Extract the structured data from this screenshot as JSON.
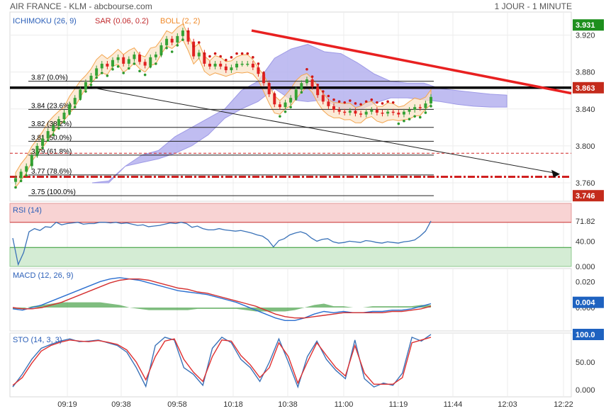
{
  "header": {
    "title": "AIR FRANCE - KLM - abcbourse.com",
    "period": "1 JOUR - 1 MINUTE"
  },
  "colors": {
    "up": "#35a235",
    "down": "#e02020",
    "sar_up": "#2f9a2f",
    "sar_down": "#d01818",
    "cloud": "#b5b2ee",
    "boll": "#f4a650",
    "rsi": "#3a72b8",
    "sto_k": "#3a72b8",
    "sto_d": "#e03030",
    "green_tag": "#1d8f1d",
    "red_tag": "#c42b1c",
    "blue_tag": "#1e62c0"
  },
  "chart_data": [
    {
      "type": "candlestick",
      "panel": "price",
      "indicator_labels": [
        "ICHIMOKU (26, 9)",
        "SAR (0.06, 0.2)",
        "BOLL (2, 2)"
      ],
      "y_ticks": [
        "3.920",
        "3.880",
        "3.840",
        "3.800",
        "3.760"
      ],
      "y_range": [
        3.74,
        3.945
      ],
      "x_ticks": [
        "09:19",
        "09:38",
        "09:58",
        "10:18",
        "10:38",
        "11:00",
        "11:19",
        "11:44",
        "12:03",
        "12:22"
      ],
      "price_tags": [
        {
          "value": "3.931",
          "price": 3.931,
          "color": "green"
        },
        {
          "value": "3.863",
          "price": 3.863,
          "color": "red"
        },
        {
          "value": "3.746",
          "price": 3.746,
          "color": "red"
        }
      ],
      "fibonacci": [
        {
          "label": "3.87  (0.0%)",
          "price": 3.87
        },
        {
          "label": "3.84  (23.6%)",
          "price": 3.8395
        },
        {
          "label": "3.82  (38.2%)",
          "price": 3.82
        },
        {
          "label": "3.81  (50.0%)",
          "price": 3.805
        },
        {
          "label": "3.79  (61.8%)",
          "price": 3.79
        },
        {
          "label": "3.77  (78.6%)",
          "price": 3.7685
        },
        {
          "label": "3.75  (100.0%)",
          "price": 3.746
        }
      ],
      "closes": [
        3.765,
        3.772,
        3.778,
        3.79,
        3.8,
        3.808,
        3.816,
        3.822,
        3.829,
        3.836,
        3.845,
        3.852,
        3.861,
        3.869,
        3.876,
        3.884,
        3.889,
        3.886,
        3.893,
        3.896,
        3.889,
        3.894,
        3.899,
        3.891,
        3.887,
        3.896,
        3.899,
        3.909,
        3.916,
        3.912,
        3.919,
        3.925,
        3.913,
        3.897,
        3.901,
        3.889,
        3.886,
        3.889,
        3.886,
        3.882,
        3.885,
        3.889,
        3.889,
        3.889,
        3.885,
        3.878,
        3.868,
        3.856,
        3.845,
        3.842,
        3.847,
        3.852,
        3.861,
        3.868,
        3.872,
        3.864,
        3.855,
        3.848,
        3.843,
        3.839,
        3.837,
        3.836,
        3.838,
        3.835,
        3.834,
        3.837,
        3.839,
        3.836,
        3.835,
        3.837,
        3.836,
        3.834,
        3.837,
        3.839,
        3.842,
        3.841,
        3.846,
        3.853
      ]
    },
    {
      "type": "line",
      "panel": "rsi",
      "label": "RSI (14)",
      "y_ticks": [
        "40.00",
        "0.000"
      ],
      "y_range": [
        0,
        100
      ],
      "overbought": 70,
      "oversold": 30,
      "current_tag": "71.82",
      "values": [
        45,
        3,
        22,
        55,
        60,
        57,
        63,
        62,
        70,
        66,
        68,
        69,
        70,
        67,
        68,
        68,
        70,
        70,
        69,
        70,
        68,
        69,
        67,
        65,
        66,
        63,
        64,
        65,
        67,
        69,
        68,
        70,
        68,
        62,
        64,
        60,
        58,
        58,
        60,
        58,
        57,
        56,
        57,
        55,
        53,
        50,
        48,
        42,
        31,
        41,
        44,
        50,
        53,
        55,
        52,
        45,
        40,
        43,
        44,
        39,
        37,
        38,
        40,
        39,
        38,
        41,
        40,
        38,
        37,
        39,
        38,
        37,
        39,
        40,
        42,
        48,
        56,
        72
      ]
    },
    {
      "type": "line",
      "panel": "macd",
      "label": "MACD (12, 26, 9)",
      "y_ticks": [
        "0.020",
        "0.000"
      ],
      "y_range": [
        -0.018,
        0.03
      ],
      "current_tag": "0.004",
      "series": [
        {
          "name": "MACD",
          "values": [
            -0.001,
            -0.002,
            0.0,
            0.002,
            0.005,
            0.008,
            0.011,
            0.014,
            0.017,
            0.02,
            0.022,
            0.023,
            0.022,
            0.021,
            0.019,
            0.017,
            0.015,
            0.013,
            0.012,
            0.011,
            0.01,
            0.008,
            0.006,
            0.004,
            0.001,
            -0.002,
            -0.005,
            -0.008,
            -0.01,
            -0.01,
            -0.008,
            -0.005,
            -0.003,
            -0.004,
            -0.003,
            -0.004,
            -0.004,
            -0.003,
            -0.003,
            -0.002,
            -0.002,
            -0.001,
            0.001,
            0.003
          ]
        },
        {
          "name": "Signal",
          "values": [
            0.0,
            -0.001,
            -0.001,
            0.0,
            0.002,
            0.004,
            0.007,
            0.01,
            0.013,
            0.016,
            0.019,
            0.021,
            0.022,
            0.022,
            0.021,
            0.019,
            0.017,
            0.015,
            0.014,
            0.012,
            0.011,
            0.009,
            0.007,
            0.005,
            0.003,
            0.001,
            -0.002,
            -0.005,
            -0.007,
            -0.008,
            -0.008,
            -0.007,
            -0.006,
            -0.005,
            -0.004,
            -0.004,
            -0.004,
            -0.004,
            -0.004,
            -0.003,
            -0.003,
            -0.002,
            -0.001,
            0.001
          ]
        }
      ]
    },
    {
      "type": "line",
      "panel": "sto",
      "label": "STO (14, 3, 3)",
      "y_ticks": [
        "50.00",
        "0.000"
      ],
      "y_range": [
        0,
        100
      ],
      "current_tag": "100.0",
      "series": [
        {
          "name": "%K",
          "values": [
            5,
            28,
            55,
            75,
            82,
            88,
            92,
            87,
            88,
            90,
            85,
            80,
            68,
            40,
            6,
            80,
            95,
            90,
            40,
            28,
            8,
            75,
            95,
            85,
            55,
            40,
            15,
            50,
            92,
            50,
            5,
            60,
            88,
            55,
            35,
            20,
            90,
            20,
            5,
            12,
            8,
            30,
            95,
            88,
            100
          ]
        },
        {
          "name": "%D",
          "values": [
            8,
            22,
            48,
            70,
            80,
            86,
            90,
            88,
            87,
            89,
            86,
            82,
            72,
            50,
            18,
            60,
            88,
            92,
            55,
            32,
            15,
            60,
            90,
            88,
            62,
            45,
            22,
            40,
            85,
            60,
            12,
            50,
            85,
            62,
            40,
            25,
            80,
            30,
            10,
            10,
            10,
            22,
            85,
            90,
            95
          ]
        }
      ]
    }
  ]
}
